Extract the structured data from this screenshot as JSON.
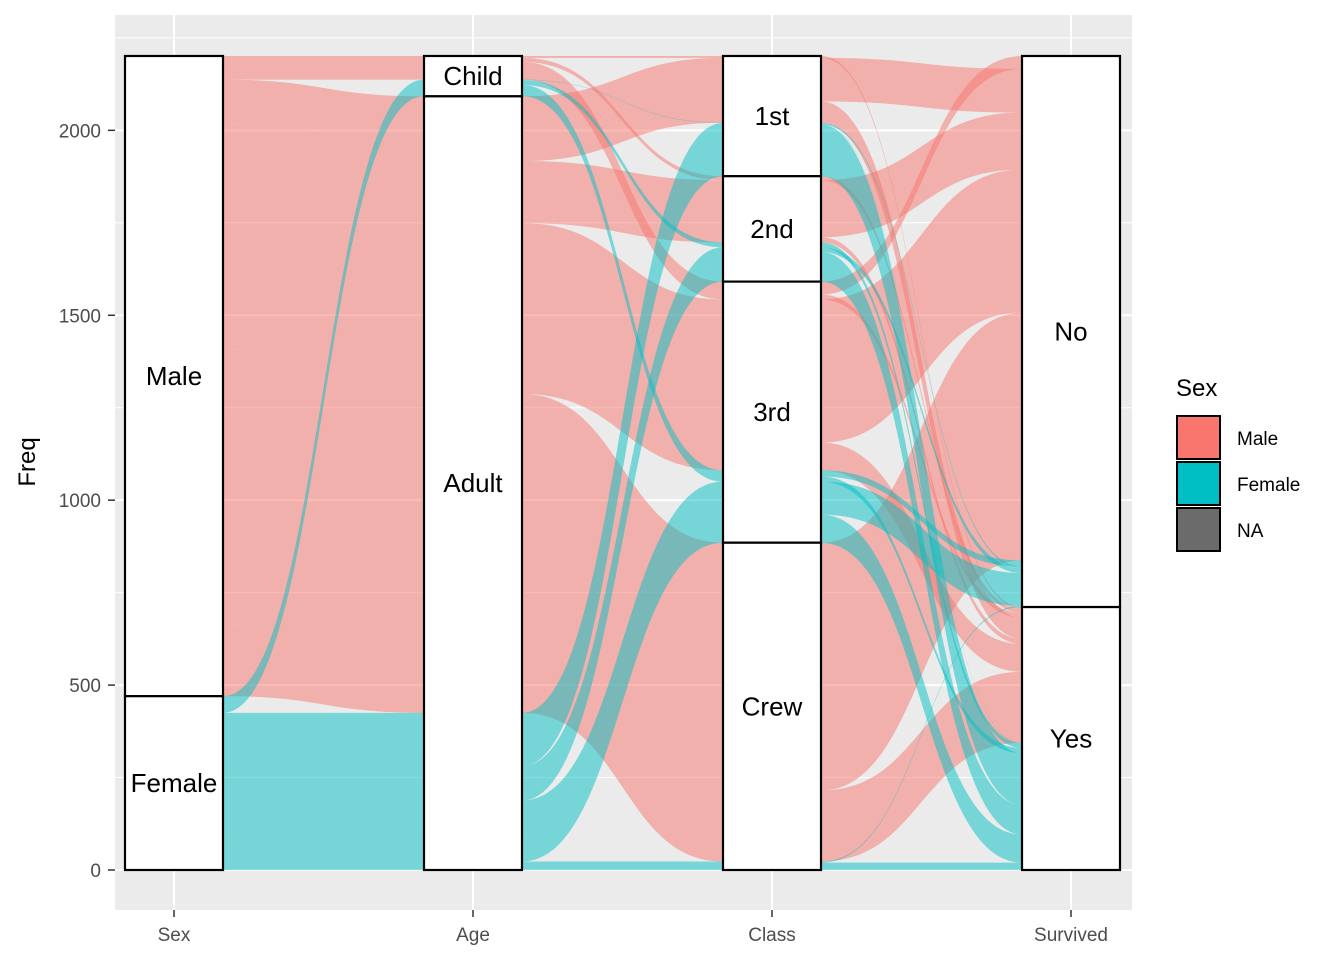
{
  "chart_data": {
    "type": "alluvial",
    "ylabel": "Freq",
    "ylim": [
      -80,
      2300
    ],
    "yticks": [
      0,
      500,
      1000,
      1500,
      2000
    ],
    "ytick_labels": [
      "0",
      "500",
      "1000",
      "1500",
      "2000"
    ],
    "axes": [
      "Sex",
      "Age",
      "Class",
      "Survived"
    ],
    "axis_order": {
      "Sex": [
        "Male",
        "Female"
      ],
      "Age": [
        "Child",
        "Adult"
      ],
      "Class": [
        "1st",
        "2nd",
        "3rd",
        "Crew"
      ],
      "Survived": [
        "No",
        "Yes"
      ]
    },
    "fill_variable": "Sex",
    "legend": {
      "title": "Sex",
      "position": "right",
      "entries": [
        {
          "label": "Male",
          "color": "#F8766D"
        },
        {
          "label": "Female",
          "color": "#00BFC4"
        },
        {
          "label": "NA",
          "color": "#6B6B6B"
        }
      ]
    },
    "flows": [
      {
        "Sex": "Male",
        "Age": "Child",
        "Class": "1st",
        "Survived": "No",
        "Freq": 0
      },
      {
        "Sex": "Male",
        "Age": "Child",
        "Class": "1st",
        "Survived": "Yes",
        "Freq": 5
      },
      {
        "Sex": "Male",
        "Age": "Child",
        "Class": "2nd",
        "Survived": "No",
        "Freq": 0
      },
      {
        "Sex": "Male",
        "Age": "Child",
        "Class": "2nd",
        "Survived": "Yes",
        "Freq": 11
      },
      {
        "Sex": "Male",
        "Age": "Child",
        "Class": "3rd",
        "Survived": "No",
        "Freq": 35
      },
      {
        "Sex": "Male",
        "Age": "Child",
        "Class": "3rd",
        "Survived": "Yes",
        "Freq": 13
      },
      {
        "Sex": "Male",
        "Age": "Adult",
        "Class": "1st",
        "Survived": "No",
        "Freq": 118
      },
      {
        "Sex": "Male",
        "Age": "Adult",
        "Class": "1st",
        "Survived": "Yes",
        "Freq": 57
      },
      {
        "Sex": "Male",
        "Age": "Adult",
        "Class": "2nd",
        "Survived": "No",
        "Freq": 154
      },
      {
        "Sex": "Male",
        "Age": "Adult",
        "Class": "2nd",
        "Survived": "Yes",
        "Freq": 14
      },
      {
        "Sex": "Male",
        "Age": "Adult",
        "Class": "3rd",
        "Survived": "No",
        "Freq": 387
      },
      {
        "Sex": "Male",
        "Age": "Adult",
        "Class": "3rd",
        "Survived": "Yes",
        "Freq": 75
      },
      {
        "Sex": "Male",
        "Age": "Adult",
        "Class": "Crew",
        "Survived": "No",
        "Freq": 670
      },
      {
        "Sex": "Male",
        "Age": "Adult",
        "Class": "Crew",
        "Survived": "Yes",
        "Freq": 192
      },
      {
        "Sex": "Female",
        "Age": "Child",
        "Class": "1st",
        "Survived": "No",
        "Freq": 0
      },
      {
        "Sex": "Female",
        "Age": "Child",
        "Class": "1st",
        "Survived": "Yes",
        "Freq": 1
      },
      {
        "Sex": "Female",
        "Age": "Child",
        "Class": "2nd",
        "Survived": "No",
        "Freq": 0
      },
      {
        "Sex": "Female",
        "Age": "Child",
        "Class": "2nd",
        "Survived": "Yes",
        "Freq": 13
      },
      {
        "Sex": "Female",
        "Age": "Child",
        "Class": "3rd",
        "Survived": "No",
        "Freq": 17
      },
      {
        "Sex": "Female",
        "Age": "Child",
        "Class": "3rd",
        "Survived": "Yes",
        "Freq": 14
      },
      {
        "Sex": "Female",
        "Age": "Adult",
        "Class": "1st",
        "Survived": "No",
        "Freq": 4
      },
      {
        "Sex": "Female",
        "Age": "Adult",
        "Class": "1st",
        "Survived": "Yes",
        "Freq": 140
      },
      {
        "Sex": "Female",
        "Age": "Adult",
        "Class": "2nd",
        "Survived": "No",
        "Freq": 13
      },
      {
        "Sex": "Female",
        "Age": "Adult",
        "Class": "2nd",
        "Survived": "Yes",
        "Freq": 80
      },
      {
        "Sex": "Female",
        "Age": "Adult",
        "Class": "3rd",
        "Survived": "No",
        "Freq": 89
      },
      {
        "Sex": "Female",
        "Age": "Adult",
        "Class": "3rd",
        "Survived": "Yes",
        "Freq": 76
      },
      {
        "Sex": "Female",
        "Age": "Adult",
        "Class": "Crew",
        "Survived": "No",
        "Freq": 3
      },
      {
        "Sex": "Female",
        "Age": "Adult",
        "Class": "Crew",
        "Survived": "Yes",
        "Freq": 20
      }
    ],
    "grid": true
  }
}
